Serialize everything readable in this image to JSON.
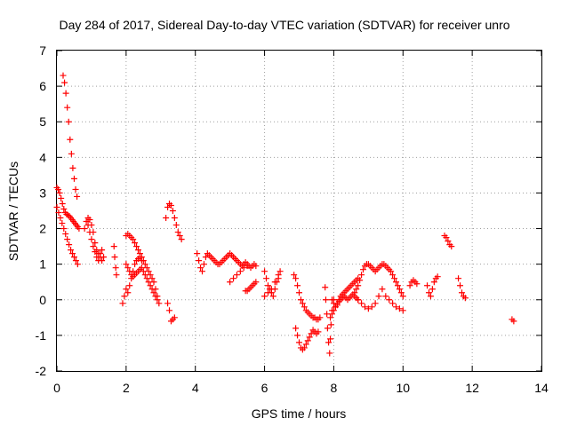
{
  "chart_data": {
    "type": "scatter",
    "title": "Day 284 of 2017, Sidereal Day-to-day VTEC variation (SDTVAR) for receiver unro",
    "xlabel": "GPS time / hours",
    "ylabel": "SDTVAR / TECUs",
    "xlim": [
      0,
      14
    ],
    "ylim": [
      -2,
      7
    ],
    "grid": true,
    "marker": "+",
    "color": "#ff0000",
    "x_ticks": [
      "0",
      "2",
      "4",
      "6",
      "8",
      "10",
      "12",
      "14"
    ],
    "y_ticks": [
      "-2",
      "-1",
      "0",
      "1",
      "2",
      "3",
      "4",
      "5",
      "6",
      "7"
    ],
    "series": [
      {
        "name": "SDTVAR",
        "segments": [
          {
            "x": [
              0.18,
              0.22,
              0.26,
              0.3,
              0.34,
              0.38,
              0.42,
              0.46,
              0.5,
              0.54,
              0.58
            ],
            "y": [
              6.3,
              6.1,
              5.8,
              5.4,
              5.0,
              4.5,
              4.1,
              3.7,
              3.4,
              3.1,
              2.9
            ]
          },
          {
            "x": [
              0.0,
              0.04,
              0.08,
              0.12,
              0.16,
              0.2,
              0.24,
              0.28,
              0.32,
              0.36,
              0.4,
              0.44,
              0.48,
              0.52,
              0.56,
              0.6,
              0.64
            ],
            "y": [
              3.15,
              3.1,
              3.0,
              2.85,
              2.7,
              2.55,
              2.45,
              2.4,
              2.38,
              2.35,
              2.3,
              2.25,
              2.2,
              2.15,
              2.1,
              2.05,
              2.0
            ]
          },
          {
            "x": [
              0.0,
              0.05,
              0.1,
              0.15,
              0.2,
              0.25,
              0.3,
              0.35,
              0.4,
              0.45,
              0.5,
              0.55,
              0.6
            ],
            "y": [
              2.6,
              2.45,
              2.3,
              2.15,
              2.0,
              1.85,
              1.7,
              1.55,
              1.4,
              1.3,
              1.2,
              1.1,
              1.0
            ]
          },
          {
            "x": [
              0.8,
              0.85,
              0.9,
              0.95,
              1.0,
              1.05,
              1.1,
              1.15,
              1.2,
              1.25,
              1.3,
              1.35
            ],
            "y": [
              2.0,
              2.2,
              2.1,
              1.9,
              1.7,
              1.5,
              1.35,
              1.2,
              1.1,
              1.3,
              1.4,
              1.2
            ]
          },
          {
            "x": [
              0.9,
              0.95,
              1.0,
              1.05,
              1.1,
              1.15,
              1.2,
              1.25,
              1.3
            ],
            "y": [
              2.3,
              2.25,
              2.1,
              1.9,
              1.6,
              1.4,
              1.3,
              1.2,
              1.1
            ]
          },
          {
            "x": [
              1.65,
              1.67,
              1.7,
              1.72
            ],
            "y": [
              1.5,
              1.2,
              0.9,
              0.7
            ]
          },
          {
            "x": [
              1.9,
              1.95,
              2.0,
              2.05,
              2.1,
              2.15,
              2.2,
              2.25,
              2.3,
              2.35,
              2.4,
              2.45
            ],
            "y": [
              -0.1,
              0.1,
              0.3,
              0.2,
              0.4,
              0.6,
              0.8,
              1.0,
              1.1,
              1.15,
              1.2,
              1.1
            ]
          },
          {
            "x": [
              2.0,
              2.05,
              2.1,
              2.15,
              2.2,
              2.25,
              2.3,
              2.35,
              2.4,
              2.45,
              2.5,
              2.55,
              2.6,
              2.65,
              2.7,
              2.75,
              2.8,
              2.85,
              2.9
            ],
            "y": [
              1.8,
              1.85,
              1.8,
              1.75,
              1.7,
              1.6,
              1.5,
              1.4,
              1.3,
              1.2,
              1.1,
              1.0,
              0.9,
              0.8,
              0.7,
              0.6,
              0.5,
              0.3,
              0.1
            ]
          },
          {
            "x": [
              2.0,
              2.05,
              2.1,
              2.15,
              2.2,
              2.25,
              2.3,
              2.35,
              2.4,
              2.45,
              2.5,
              2.55,
              2.6,
              2.65,
              2.7,
              2.75,
              2.8,
              2.85,
              2.9,
              2.95
            ],
            "y": [
              1.0,
              0.9,
              0.8,
              0.7,
              0.65,
              0.7,
              0.75,
              0.8,
              0.85,
              0.9,
              0.8,
              0.7,
              0.6,
              0.5,
              0.4,
              0.3,
              0.2,
              0.1,
              0.0,
              -0.1
            ]
          },
          {
            "x": [
              3.15,
              3.2,
              3.25,
              3.3,
              3.35,
              3.4,
              3.45,
              3.5,
              3.55,
              3.6
            ],
            "y": [
              2.3,
              2.6,
              2.7,
              2.65,
              2.5,
              2.3,
              2.1,
              1.9,
              1.8,
              1.7
            ]
          },
          {
            "x": [
              3.2,
              3.25,
              3.3,
              3.35,
              3.4
            ],
            "y": [
              -0.1,
              -0.3,
              -0.6,
              -0.55,
              -0.5
            ]
          },
          {
            "x": [
              4.05,
              4.1,
              4.15,
              4.2,
              4.25,
              4.3,
              4.35,
              4.4,
              4.45,
              4.5,
              4.55,
              4.6,
              4.65,
              4.7,
              4.75,
              4.8,
              4.85,
              4.9,
              4.95,
              5.0,
              5.05,
              5.1,
              5.15,
              5.2,
              5.25,
              5.3,
              5.35,
              5.4,
              5.45,
              5.5,
              5.55,
              5.6,
              5.65,
              5.7,
              5.75
            ],
            "y": [
              1.3,
              1.1,
              0.9,
              0.8,
              1.0,
              1.2,
              1.3,
              1.25,
              1.2,
              1.15,
              1.1,
              1.05,
              1.0,
              1.0,
              1.05,
              1.1,
              1.15,
              1.2,
              1.25,
              1.3,
              1.25,
              1.2,
              1.15,
              1.1,
              1.05,
              1.0,
              0.95,
              1.0,
              1.05,
              1.0,
              0.95,
              0.9,
              0.95,
              1.0,
              0.95
            ]
          },
          {
            "x": [
              5.0,
              5.1,
              5.2,
              5.3,
              5.4,
              5.5
            ],
            "y": [
              0.5,
              0.6,
              0.7,
              0.8,
              0.9,
              0.95
            ]
          },
          {
            "x": [
              5.45,
              5.5,
              5.55,
              5.6,
              5.65,
              5.7,
              5.75
            ],
            "y": [
              0.25,
              0.25,
              0.3,
              0.35,
              0.4,
              0.45,
              0.5
            ]
          },
          {
            "x": [
              6.0,
              6.05,
              6.1,
              6.15,
              6.2,
              6.25,
              6.3,
              6.35,
              6.4,
              6.45
            ],
            "y": [
              0.8,
              0.6,
              0.4,
              0.3,
              0.2,
              0.1,
              0.3,
              0.5,
              0.7,
              0.8
            ]
          },
          {
            "x": [
              6.0,
              6.1,
              6.2,
              6.3,
              6.4
            ],
            "y": [
              0.1,
              0.2,
              0.3,
              0.5,
              0.6
            ]
          },
          {
            "x": [
              6.85,
              6.9,
              6.95,
              7.0,
              7.05,
              7.1,
              7.15,
              7.2,
              7.25,
              7.3,
              7.35,
              7.4,
              7.45,
              7.5,
              7.55,
              7.6
            ],
            "y": [
              0.7,
              0.6,
              0.4,
              0.2,
              0.0,
              -0.1,
              -0.2,
              -0.3,
              -0.35,
              -0.4,
              -0.45,
              -0.5,
              -0.5,
              -0.55,
              -0.55,
              -0.5
            ]
          },
          {
            "x": [
              6.9,
              6.95,
              7.0,
              7.05,
              7.1,
              7.15,
              7.2,
              7.25,
              7.3,
              7.35,
              7.4,
              7.45,
              7.5,
              7.55
            ],
            "y": [
              -0.8,
              -1.0,
              -1.2,
              -1.35,
              -1.4,
              -1.35,
              -1.25,
              -1.15,
              -1.05,
              -0.95,
              -0.85,
              -0.9,
              -0.95,
              -0.9
            ]
          },
          {
            "x": [
              7.75,
              7.77,
              7.8,
              7.82,
              7.85,
              7.88,
              7.9,
              7.92,
              7.95,
              8.0
            ],
            "y": [
              0.35,
              0.0,
              -0.4,
              -0.8,
              -1.2,
              -1.5,
              -1.1,
              -0.7,
              -0.3,
              0.0
            ]
          },
          {
            "x": [
              7.9,
              7.95,
              8.0,
              8.05,
              8.1,
              8.15,
              8.2,
              8.25,
              8.3,
              8.35,
              8.4,
              8.45,
              8.5,
              8.55,
              8.6,
              8.65,
              8.7
            ],
            "y": [
              -0.5,
              -0.4,
              -0.3,
              -0.2,
              -0.1,
              0.0,
              0.1,
              0.15,
              0.2,
              0.25,
              0.3,
              0.35,
              0.4,
              0.45,
              0.5,
              0.55,
              0.6
            ]
          },
          {
            "x": [
              7.95,
              8.0,
              8.05,
              8.1,
              8.15,
              8.2,
              8.25,
              8.3,
              8.35,
              8.4,
              8.45,
              8.5,
              8.55,
              8.6,
              8.65,
              8.7
            ],
            "y": [
              0.0,
              -0.1,
              -0.2,
              -0.15,
              -0.05,
              0.0,
              0.05,
              0.1,
              0.05,
              0.0,
              0.05,
              0.1,
              0.15,
              0.1,
              0.05,
              0.0
            ]
          },
          {
            "x": [
              8.6,
              8.65,
              8.7,
              8.75,
              8.8,
              8.85,
              8.9,
              8.95,
              9.0,
              9.05,
              9.1,
              9.15,
              9.2,
              9.25,
              9.3,
              9.35,
              9.4,
              9.45,
              9.5,
              9.55,
              9.6,
              9.65,
              9.7,
              9.75,
              9.8,
              9.85,
              9.9,
              9.95,
              10.0
            ],
            "y": [
              0.2,
              0.3,
              0.4,
              0.55,
              0.7,
              0.85,
              0.95,
              1.0,
              1.0,
              0.95,
              0.9,
              0.85,
              0.8,
              0.85,
              0.9,
              0.95,
              1.0,
              1.0,
              0.95,
              0.9,
              0.85,
              0.8,
              0.7,
              0.6,
              0.5,
              0.4,
              0.3,
              0.2,
              0.1
            ]
          },
          {
            "x": [
              8.7,
              8.8,
              8.9,
              9.0,
              9.1,
              9.2,
              9.3,
              9.4,
              9.5,
              9.6,
              9.7,
              9.8,
              9.9,
              10.0
            ],
            "y": [
              0.0,
              -0.1,
              -0.2,
              -0.25,
              -0.2,
              -0.1,
              0.1,
              0.3,
              0.1,
              0.0,
              -0.1,
              -0.2,
              -0.25,
              -0.3
            ]
          },
          {
            "x": [
              10.2,
              10.25,
              10.3,
              10.35,
              10.4
            ],
            "y": [
              0.4,
              0.5,
              0.55,
              0.5,
              0.45
            ]
          },
          {
            "x": [
              10.7,
              10.75,
              10.8,
              10.85,
              10.9,
              10.95,
              11.0
            ],
            "y": [
              0.4,
              0.2,
              0.1,
              0.3,
              0.5,
              0.6,
              0.65
            ]
          },
          {
            "x": [
              11.2,
              11.25,
              11.3,
              11.35,
              11.4
            ],
            "y": [
              1.8,
              1.75,
              1.65,
              1.55,
              1.5
            ]
          },
          {
            "x": [
              11.6,
              11.65,
              11.7,
              11.75,
              11.8
            ],
            "y": [
              0.6,
              0.4,
              0.2,
              0.1,
              0.05
            ]
          },
          {
            "x": [
              13.15,
              13.2
            ],
            "y": [
              -0.55,
              -0.6
            ]
          }
        ]
      }
    ]
  }
}
